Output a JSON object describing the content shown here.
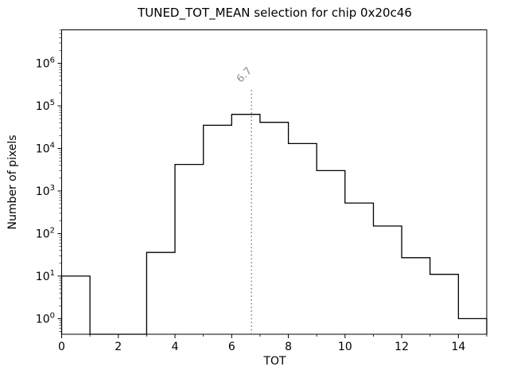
{
  "figure": {
    "background": "#ffffff"
  },
  "chart_data": {
    "type": "bar",
    "subtype": "step-histogram",
    "title": "TUNED_TOT_MEAN selection for chip 0x20c46",
    "xlabel": "TOT",
    "ylabel": "Number of pixels",
    "yscale": "log",
    "xlim": [
      0,
      15
    ],
    "ylim": [
      0.43,
      6100000
    ],
    "bin_edges": [
      0,
      1,
      2,
      3,
      4,
      5,
      6,
      7,
      8,
      9,
      10,
      11,
      12,
      13,
      14,
      15
    ],
    "counts": [
      10,
      0,
      0,
      36,
      4200,
      35000,
      63000,
      41000,
      13000,
      3000,
      520,
      150,
      27,
      11,
      1
    ],
    "x_major_ticks": [
      0,
      2,
      4,
      6,
      8,
      10,
      12,
      14
    ],
    "x_minor_tick_step": 1,
    "y_major_tick_exponents": [
      0,
      1,
      2,
      3,
      4,
      5,
      6
    ],
    "grid": "off",
    "legend": "none",
    "line_color": "#000000",
    "vline": {
      "x": 6.7,
      "label": "6.7",
      "style": "dotted",
      "color": "#7f7f7f",
      "label_color": "#8f8f8f"
    }
  }
}
